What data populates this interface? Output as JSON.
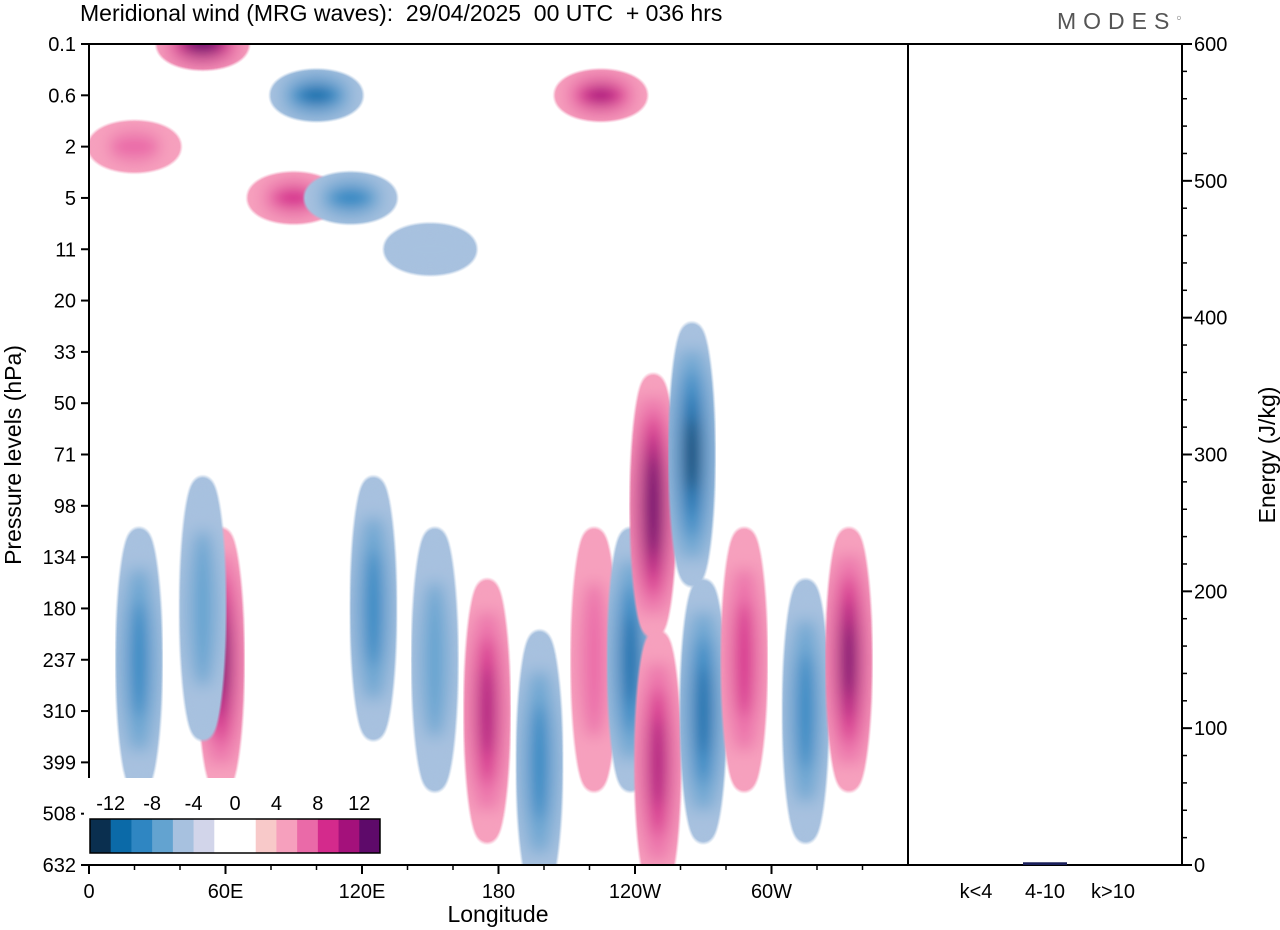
{
  "title": "Meridional wind (MRG waves):  29/04/2025  00 UTC  + 036 hrs",
  "brand": "MODES",
  "colors": {
    "blue": [
      "#0a2f4f",
      "#0b6aa8",
      "#2f86c2",
      "#63a3d0",
      "#a7c1df",
      "#d2d5ea"
    ],
    "pink": [
      "#f8c9c9",
      "#f6a0bd",
      "#ea6aa8",
      "#d42a8c",
      "#a4117b",
      "#5e0a6a"
    ],
    "energy_bar": "#1a1f5a"
  },
  "chart_data": [
    {
      "type": "heatmap",
      "title": "Meridional wind (MRG waves):  29/04/2025  00 UTC  + 036 hrs",
      "xlabel": "Longitude",
      "ylabel": "Pressure levels (hPa)",
      "x_ticks": [
        "0",
        "60E",
        "120E",
        "180",
        "120W",
        "60W"
      ],
      "y_ticks": [
        "0.1",
        "0.6",
        "2",
        "5",
        "11",
        "20",
        "33",
        "50",
        "71",
        "98",
        "134",
        "180",
        "237",
        "310",
        "399",
        "508",
        "632"
      ],
      "colorbar": {
        "labels": [
          "-12",
          "-8",
          "-4",
          "0",
          "4",
          "8",
          "12"
        ],
        "levels": [
          -12,
          -10,
          -8,
          -6,
          -4,
          -2,
          0,
          2,
          4,
          6,
          8,
          10,
          12
        ]
      },
      "features": [
        {
          "lon": 22,
          "level": "237",
          "value": -6
        },
        {
          "lon": 58,
          "level": "237",
          "value": 11
        },
        {
          "lon": 50,
          "level": "180",
          "value": -4
        },
        {
          "lon": 125,
          "level": "180",
          "value": -6
        },
        {
          "lon": 152,
          "level": "237",
          "value": -4
        },
        {
          "lon": 175,
          "level": "310",
          "value": 8
        },
        {
          "lon": 198,
          "level": "399",
          "value": -6
        },
        {
          "lon": 222,
          "level": "237",
          "value": 4
        },
        {
          "lon": 238,
          "level": "237",
          "value": -8
        },
        {
          "lon": 248,
          "level": "98",
          "value": 13
        },
        {
          "lon": 250,
          "level": "399",
          "value": 9
        },
        {
          "lon": 265,
          "level": "71",
          "value": -10
        },
        {
          "lon": 270,
          "level": "310",
          "value": -8
        },
        {
          "lon": 288,
          "level": "237",
          "value": 6
        },
        {
          "lon": 315,
          "level": "310",
          "value": -7
        },
        {
          "lon": 334,
          "level": "237",
          "value": 11
        },
        {
          "lon": 50,
          "level": "0.1",
          "value": 13
        },
        {
          "lon": 100,
          "level": "0.6",
          "value": -9
        },
        {
          "lon": 225,
          "level": "0.6",
          "value": 8
        },
        {
          "lon": 90,
          "level": "5",
          "value": 6
        },
        {
          "lon": 115,
          "level": "5",
          "value": -6
        },
        {
          "lon": 20,
          "level": "2",
          "value": 4
        },
        {
          "lon": 150,
          "level": "11",
          "value": -2
        }
      ]
    },
    {
      "type": "bar",
      "ylabel": "Energy (J/kg)",
      "ylim": [
        0,
        600
      ],
      "y_ticks": [
        "0",
        "100",
        "200",
        "300",
        "400",
        "500",
        "600"
      ],
      "categories": [
        "k<4",
        "4-10",
        "k>10"
      ],
      "values": [
        0,
        2,
        0
      ]
    }
  ]
}
